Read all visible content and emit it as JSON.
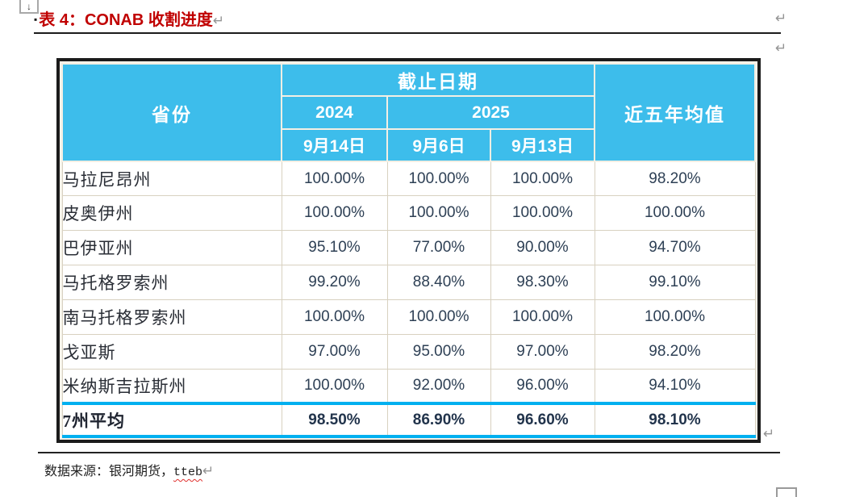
{
  "title": {
    "bullet": "▪",
    "text": "表 4：CONAB 收割进度",
    "return_mark": "↵"
  },
  "marks": {
    "return": "↵",
    "anchor_arrow": "↓"
  },
  "table": {
    "header": {
      "province": "省份",
      "deadline_group": "截止日期",
      "year_2024": "2024",
      "year_2025": "2025",
      "date_2024": "9月14日",
      "date_2025_a": "9月6日",
      "date_2025_b": "9月13日",
      "five_year_avg": "近五年均值"
    },
    "rows": [
      {
        "province": "马拉尼昂州",
        "values": [
          "100.00%",
          "100.00%",
          "100.00%",
          "98.20%"
        ]
      },
      {
        "province": "皮奥伊州",
        "values": [
          "100.00%",
          "100.00%",
          "100.00%",
          "100.00%"
        ]
      },
      {
        "province": "巴伊亚州",
        "values": [
          "95.10%",
          "77.00%",
          "90.00%",
          "94.70%"
        ]
      },
      {
        "province": "马托格罗索州",
        "values": [
          "99.20%",
          "88.40%",
          "98.30%",
          "99.10%"
        ]
      },
      {
        "province": "南马托格罗索州",
        "values": [
          "100.00%",
          "100.00%",
          "100.00%",
          "100.00%"
        ]
      },
      {
        "province": "戈亚斯",
        "values": [
          "97.00%",
          "95.00%",
          "97.00%",
          "98.20%"
        ]
      },
      {
        "province": "米纳斯吉拉斯州",
        "values": [
          "100.00%",
          "92.00%",
          "96.00%",
          "94.10%"
        ]
      }
    ],
    "total_row": {
      "province": "7州平均",
      "values": [
        "98.50%",
        "86.90%",
        "96.60%",
        "98.10%"
      ]
    }
  },
  "footer": {
    "source_label": "数据来源：银河期货，",
    "source_word": "tteb",
    "return_mark": "↵"
  },
  "colors": {
    "header_blue": "#3DBDEB",
    "accent_cyan": "#00B0F0",
    "title_red": "#C00000",
    "cell_border": "#D8D1C0",
    "body_text": "#2E4055"
  }
}
